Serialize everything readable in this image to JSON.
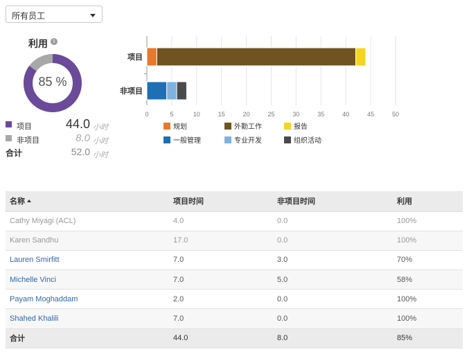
{
  "filter": {
    "value": "所有员工"
  },
  "summary": {
    "title": "利用",
    "info_glyph": "i",
    "percent_label": "85 %",
    "utilization_fraction": 0.85,
    "project_label": "项目",
    "project_value": "44.0",
    "nonproject_label": "非项目",
    "nonproject_value": "8.0",
    "total_label": "合计",
    "total_value": "52.0",
    "unit": "小时",
    "colors": {
      "project": "#6b4a9a",
      "nonproject": "#a8a8a8"
    }
  },
  "chart_data": {
    "type": "bar",
    "orientation": "horizontal-stacked",
    "categories": [
      "项目",
      "非项目"
    ],
    "x_ticks": [
      0,
      5,
      10,
      15,
      20,
      25,
      30,
      35,
      40,
      45,
      50
    ],
    "xlim": [
      0,
      50
    ],
    "grid": true,
    "legend_position": "bottom",
    "segments": [
      {
        "category": "项目",
        "series": "规划",
        "start": 0,
        "value": 2.0,
        "color": "#e8782a"
      },
      {
        "category": "项目",
        "series": "外勤工作",
        "start": 2.0,
        "value": 40.0,
        "color": "#6f5320"
      },
      {
        "category": "项目",
        "series": "报告",
        "start": 42.0,
        "value": 2.0,
        "color": "#f5d524"
      },
      {
        "category": "非项目",
        "series": "一般管理",
        "start": 0,
        "value": 4.0,
        "color": "#1f6fb5"
      },
      {
        "category": "非项目",
        "series": "专业开发",
        "start": 4.0,
        "value": 2.0,
        "color": "#7fb2e0"
      },
      {
        "category": "非项目",
        "series": "组织活动",
        "start": 6.0,
        "value": 2.0,
        "color": "#4a4a4a"
      }
    ],
    "legend": [
      {
        "name": "规划",
        "color": "#e8782a"
      },
      {
        "name": "外勤工作",
        "color": "#6f5320"
      },
      {
        "name": "报告",
        "color": "#f5d524"
      },
      {
        "name": "一般管理",
        "color": "#1f6fb5"
      },
      {
        "name": "专业开发",
        "color": "#7fb2e0"
      },
      {
        "name": "组织活动",
        "color": "#4a4a4a"
      }
    ]
  },
  "table": {
    "headers": [
      "名称",
      "项目时间",
      "非项目时间",
      "利用"
    ],
    "rows": [
      {
        "name": "Cathy Miyagi (ACL)",
        "project": "4.0",
        "nonproject": "0.0",
        "util": "100%",
        "muted": true
      },
      {
        "name": "Karen Sandhu",
        "project": "17.0",
        "nonproject": "0.0",
        "util": "100%",
        "muted": true
      },
      {
        "name": "Lauren Smirfitt",
        "project": "7.0",
        "nonproject": "3.0",
        "util": "70%",
        "muted": false
      },
      {
        "name": "Michelle Vinci",
        "project": "7.0",
        "nonproject": "5.0",
        "util": "58%",
        "muted": false
      },
      {
        "name": "Payam Moghaddam",
        "project": "2.0",
        "nonproject": "0.0",
        "util": "100%",
        "muted": false
      },
      {
        "name": "Shahed Khalili",
        "project": "7.0",
        "nonproject": "0.0",
        "util": "100%",
        "muted": false
      }
    ],
    "total": {
      "name": "合计",
      "project": "44.0",
      "nonproject": "8.0",
      "util": "85%"
    }
  }
}
